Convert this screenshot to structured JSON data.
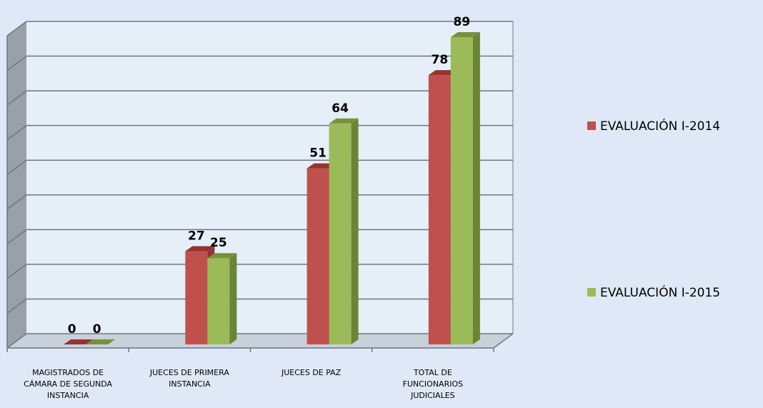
{
  "chart_data": {
    "type": "bar",
    "categories": [
      [
        "MAGISTRADOS DE",
        "CÁMARA DE SEGUNDA",
        "INSTANCIA"
      ],
      [
        "JUECES DE PRIMERA",
        "INSTANCIA"
      ],
      [
        "JUECES DE PAZ"
      ],
      [
        "TOTAL DE",
        "FUNCIONARIOS",
        "JUDICIALES"
      ]
    ],
    "series": [
      {
        "name": "EVALUACIÓN I-2014",
        "values": [
          0,
          27,
          51,
          78
        ],
        "value_labels": [
          "0",
          "27",
          "51",
          "78"
        ],
        "color": "#c0504d",
        "top_color": "#96322f",
        "side_color": "#8c3735"
      },
      {
        "name": "EVALUACIÓN I-2015",
        "values": [
          0,
          25,
          64,
          89
        ],
        "value_labels": [
          "0",
          "25",
          "64",
          "89"
        ],
        "color": "#9bbb59",
        "top_color": "#76923c",
        "side_color": "#6b8436"
      }
    ],
    "ylim": [
      0,
      90
    ],
    "grid": true,
    "legend_position": "right",
    "three_d": true,
    "colors": {
      "background": "#dfe8f6",
      "plot_back": "#e6eef8",
      "left_wall": "#9aa0a8",
      "floor": "#c8d0da",
      "gridline": "#6e7683",
      "axis": "#6e7683"
    }
  }
}
